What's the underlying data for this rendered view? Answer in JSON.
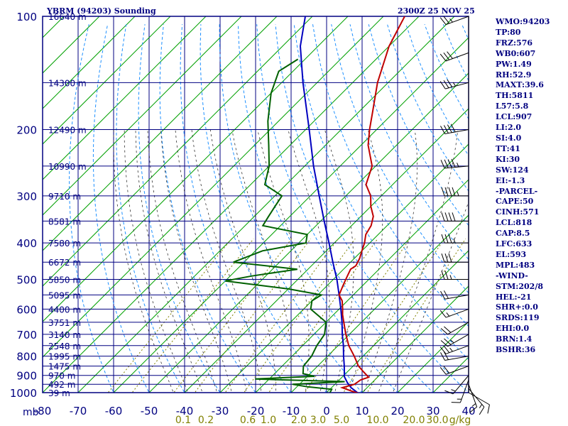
{
  "header": {
    "station": "YBRM (94203) Sounding",
    "time": "2300Z 25 NOV 25"
  },
  "stats": [
    "WMO:94203",
    "TP:80",
    "FRZ:576",
    "WB0:607",
    "PW:1.49",
    "RH:52.9",
    "MAXT:39.6",
    "TH:5811",
    "L57:5.8",
    "LCL:907",
    "LI:2.0",
    "SI:4.0",
    "TT:41",
    "KI:30",
    "SW:124",
    "EI:-1.3",
    "-PARCEL-",
    "CAPE:50",
    "CINH:571",
    "LCL:818",
    "CAP:8.5",
    "LFC:633",
    "EL:593",
    "MPL:483",
    "-WIND-",
    "STM:202/8",
    "HEL:-21",
    "SHR+:0.0",
    "SRDS:119",
    "EHI:0.0",
    "BRN:1.4",
    "BSHR:36"
  ],
  "colors": {
    "grid": "#000080",
    "isotherm": "#00a000",
    "dry_adiabat": "#1e90ff",
    "moist_adiabat": "#333333",
    "mixing_ratio": "#808000",
    "temperature": "#c00000",
    "dewpoint": "#006000",
    "parcel": "#0000c0",
    "wind": "#000000",
    "axis_text": "#000080",
    "mixing_text": "#808000"
  },
  "chart_data": {
    "type": "skew-t",
    "pressure_axis": {
      "unit": "mb",
      "ticks": [
        100,
        200,
        300,
        400,
        500,
        600,
        700,
        800,
        900,
        1000
      ]
    },
    "temperature_axis": {
      "ticks": [
        -80,
        -70,
        -60,
        -50,
        -40,
        -30,
        -20,
        -10,
        0,
        10,
        20,
        30,
        40
      ]
    },
    "mixing_ratio_labels": [
      "0.1",
      "0.2",
      "0.6",
      "1.0",
      "2.0",
      "3.0",
      "5.0",
      "10.0",
      "20.0",
      "30.0"
    ],
    "mixing_unit": "g/kg",
    "height_levels": [
      {
        "p": 100,
        "label": "16640 m"
      },
      {
        "p": 150,
        "label": "14300 m"
      },
      {
        "p": 200,
        "label": "12490 m"
      },
      {
        "p": 250,
        "label": "10990 m"
      },
      {
        "p": 300,
        "label": "9710 m"
      },
      {
        "p": 350,
        "label": "8581 m"
      },
      {
        "p": 400,
        "label": "7580 m"
      },
      {
        "p": 450,
        "label": "6672 m"
      },
      {
        "p": 500,
        "label": "5850 m"
      },
      {
        "p": 550,
        "label": "5095 m"
      },
      {
        "p": 600,
        "label": "4400 m"
      },
      {
        "p": 650,
        "label": "3751 m"
      },
      {
        "p": 700,
        "label": "3140 m"
      },
      {
        "p": 750,
        "label": "2548 m"
      },
      {
        "p": 800,
        "label": "1995 m"
      },
      {
        "p": 850,
        "label": "1475 m"
      },
      {
        "p": 900,
        "label": "970 m"
      },
      {
        "p": 950,
        "label": "492 m"
      },
      {
        "p": 1000,
        "label": "39 m"
      }
    ],
    "temperature": [
      [
        1003,
        29.0
      ],
      [
        990,
        26.5
      ],
      [
        970,
        23.0
      ],
      [
        950,
        25.5
      ],
      [
        925,
        26.0
      ],
      [
        910,
        27.5
      ],
      [
        880,
        24.5
      ],
      [
        850,
        21.5
      ],
      [
        800,
        17.5
      ],
      [
        750,
        13.0
      ],
      [
        700,
        9.0
      ],
      [
        650,
        5.0
      ],
      [
        620,
        2.5
      ],
      [
        600,
        1.0
      ],
      [
        570,
        -1.5
      ],
      [
        550,
        -4.0
      ],
      [
        520,
        -5.5
      ],
      [
        500,
        -6.5
      ],
      [
        470,
        -8.0
      ],
      [
        460,
        -7.5
      ],
      [
        440,
        -8.5
      ],
      [
        420,
        -10.0
      ],
      [
        400,
        -11.5
      ],
      [
        380,
        -13.5
      ],
      [
        360,
        -14.5
      ],
      [
        340,
        -16.5
      ],
      [
        320,
        -20.0
      ],
      [
        300,
        -23.0
      ],
      [
        280,
        -27.5
      ],
      [
        250,
        -31.0
      ],
      [
        220,
        -38.0
      ],
      [
        200,
        -42.0
      ],
      [
        180,
        -46.0
      ],
      [
        150,
        -53.0
      ],
      [
        120,
        -60.0
      ],
      [
        100,
        -64.0
      ]
    ],
    "dewpoint": [
      [
        1003,
        21.0
      ],
      [
        980,
        20.5
      ],
      [
        965,
        13.0
      ],
      [
        950,
        8.0
      ],
      [
        935,
        22.0
      ],
      [
        920,
        -4.0
      ],
      [
        905,
        12.0
      ],
      [
        890,
        8.0
      ],
      [
        860,
        6.5
      ],
      [
        850,
        6.0
      ],
      [
        800,
        5.5
      ],
      [
        750,
        4.0
      ],
      [
        700,
        3.0
      ],
      [
        650,
        0.0
      ],
      [
        600,
        -8.0
      ],
      [
        570,
        -10.0
      ],
      [
        550,
        -9.0
      ],
      [
        530,
        -20.0
      ],
      [
        505,
        -40.0
      ],
      [
        490,
        -34.0
      ],
      [
        470,
        -23.0
      ],
      [
        450,
        -43.0
      ],
      [
        420,
        -38.0
      ],
      [
        400,
        -28.0
      ],
      [
        380,
        -30.0
      ],
      [
        360,
        -45.0
      ],
      [
        340,
        -46.0
      ],
      [
        320,
        -47.0
      ],
      [
        300,
        -48.0
      ],
      [
        280,
        -56.0
      ],
      [
        250,
        -60.0
      ],
      [
        220,
        -66.0
      ],
      [
        190,
        -73.0
      ],
      [
        160,
        -80.0
      ],
      [
        140,
        -84.0
      ],
      [
        130,
        -82.0
      ]
    ],
    "parcel": [
      [
        1003,
        29.0
      ],
      [
        970,
        25.5
      ],
      [
        940,
        23.0
      ],
      [
        907,
        20.5
      ],
      [
        850,
        17.5
      ],
      [
        800,
        14.5
      ],
      [
        750,
        11.5
      ],
      [
        700,
        8.0
      ],
      [
        650,
        4.5
      ],
      [
        600,
        0.5
      ],
      [
        550,
        -4.0
      ],
      [
        500,
        -9.0
      ],
      [
        450,
        -15.0
      ],
      [
        400,
        -21.5
      ],
      [
        350,
        -29.0
      ],
      [
        300,
        -37.5
      ],
      [
        250,
        -47.5
      ],
      [
        200,
        -59.0
      ],
      [
        150,
        -74.0
      ],
      [
        120,
        -85.0
      ],
      [
        100,
        -92.0
      ]
    ],
    "winds": [
      {
        "p": 1000,
        "dir": 120,
        "spd": 10
      },
      {
        "p": 975,
        "dir": 140,
        "spd": 15
      },
      {
        "p": 950,
        "dir": 160,
        "spd": 15
      },
      {
        "p": 925,
        "dir": 200,
        "spd": 15
      },
      {
        "p": 900,
        "dir": 220,
        "spd": 15
      },
      {
        "p": 850,
        "dir": 250,
        "spd": 20
      },
      {
        "p": 800,
        "dir": 260,
        "spd": 20
      },
      {
        "p": 750,
        "dir": 250,
        "spd": 25
      },
      {
        "p": 700,
        "dir": 240,
        "spd": 25
      },
      {
        "p": 650,
        "dir": 240,
        "spd": 20
      },
      {
        "p": 600,
        "dir": 250,
        "spd": 15
      },
      {
        "p": 550,
        "dir": 260,
        "spd": 20
      },
      {
        "p": 500,
        "dir": 270,
        "spd": 25
      },
      {
        "p": 450,
        "dir": 270,
        "spd": 30
      },
      {
        "p": 400,
        "dir": 270,
        "spd": 35
      },
      {
        "p": 350,
        "dir": 270,
        "spd": 40
      },
      {
        "p": 300,
        "dir": 270,
        "spd": 45
      },
      {
        "p": 250,
        "dir": 265,
        "spd": 45
      },
      {
        "p": 200,
        "dir": 260,
        "spd": 40
      },
      {
        "p": 150,
        "dir": 255,
        "spd": 35
      },
      {
        "p": 125,
        "dir": 250,
        "spd": 30
      },
      {
        "p": 100,
        "dir": 250,
        "spd": 25
      }
    ]
  }
}
